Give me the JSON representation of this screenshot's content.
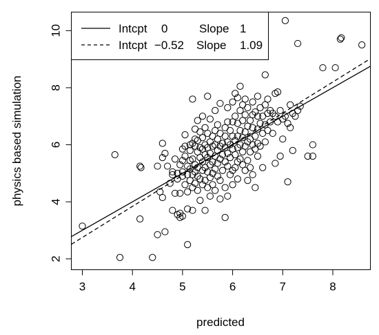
{
  "chart_data": {
    "type": "scatter",
    "title": "",
    "xlabel": "predicted",
    "ylabel": "physics based simulation",
    "xlim": [
      2.78,
      8.75
    ],
    "ylim": [
      1.62,
      10.65
    ],
    "xticks": [
      3,
      4,
      5,
      6,
      7,
      8
    ],
    "yticks": [
      2,
      4,
      6,
      8,
      10
    ],
    "grid": false,
    "legend": {
      "position": "top-left",
      "entries": [
        {
          "style": "solid",
          "intcpt_label": "Intcpt",
          "intcpt": "0",
          "slope_label": "Slope",
          "slope": "1"
        },
        {
          "style": "dashed",
          "intcpt_label": "Intcpt",
          "intcpt": "−0.52",
          "slope_label": "Slope",
          "slope": "1.09"
        }
      ]
    },
    "lines": [
      {
        "style": "solid",
        "intercept": 0,
        "slope": 1
      },
      {
        "style": "dashed",
        "intercept": -0.52,
        "slope": 1.09
      }
    ],
    "points": [
      [
        3.0,
        3.15
      ],
      [
        3.65,
        5.65
      ],
      [
        3.75,
        2.05
      ],
      [
        4.15,
        5.25
      ],
      [
        4.17,
        5.2
      ],
      [
        4.15,
        3.4
      ],
      [
        4.4,
        2.05
      ],
      [
        4.5,
        5.25
      ],
      [
        4.5,
        2.85
      ],
      [
        4.55,
        4.35
      ],
      [
        4.6,
        4.15
      ],
      [
        4.6,
        6.05
      ],
      [
        4.6,
        5.55
      ],
      [
        4.65,
        5.7
      ],
      [
        4.65,
        2.95
      ],
      [
        4.7,
        5.25
      ],
      [
        4.75,
        4.65
      ],
      [
        4.8,
        5.05
      ],
      [
        4.8,
        4.95
      ],
      [
        4.8,
        3.7
      ],
      [
        4.85,
        5.5
      ],
      [
        4.85,
        4.3
      ],
      [
        4.9,
        5.0
      ],
      [
        4.9,
        4.8
      ],
      [
        4.9,
        3.55
      ],
      [
        4.95,
        5.3
      ],
      [
        4.95,
        4.3
      ],
      [
        4.95,
        3.6
      ],
      [
        4.95,
        3.45
      ],
      [
        5.0,
        5.85
      ],
      [
        5.0,
        5.45
      ],
      [
        5.0,
        5.05
      ],
      [
        5.0,
        4.9
      ],
      [
        5.0,
        3.5
      ],
      [
        5.05,
        6.35
      ],
      [
        5.05,
        5.95
      ],
      [
        5.05,
        5.6
      ],
      [
        5.05,
        4.6
      ],
      [
        5.1,
        5.25
      ],
      [
        5.1,
        4.95
      ],
      [
        5.1,
        4.35
      ],
      [
        5.1,
        3.75
      ],
      [
        5.1,
        2.5
      ],
      [
        5.15,
        6.0
      ],
      [
        5.15,
        5.8
      ],
      [
        5.15,
        5.45
      ],
      [
        5.15,
        5.15
      ],
      [
        5.15,
        4.75
      ],
      [
        5.2,
        7.6
      ],
      [
        5.2,
        6.05
      ],
      [
        5.2,
        5.5
      ],
      [
        5.2,
        4.95
      ],
      [
        5.2,
        4.5
      ],
      [
        5.2,
        3.7
      ],
      [
        5.25,
        6.55
      ],
      [
        5.25,
        6.2
      ],
      [
        5.25,
        5.95
      ],
      [
        5.25,
        5.3
      ],
      [
        5.25,
        5.05
      ],
      [
        5.25,
        4.65
      ],
      [
        5.3,
        6.85
      ],
      [
        5.3,
        6.15
      ],
      [
        5.3,
        5.75
      ],
      [
        5.3,
        5.2
      ],
      [
        5.3,
        4.9
      ],
      [
        5.3,
        4.4
      ],
      [
        5.35,
        6.45
      ],
      [
        5.35,
        5.9
      ],
      [
        5.35,
        5.55
      ],
      [
        5.35,
        4.8
      ],
      [
        5.35,
        4.05
      ],
      [
        5.4,
        7.0
      ],
      [
        5.4,
        6.25
      ],
      [
        5.4,
        5.85
      ],
      [
        5.4,
        5.4
      ],
      [
        5.4,
        5.1
      ],
      [
        5.4,
        4.6
      ],
      [
        5.45,
        6.6
      ],
      [
        5.45,
        6.0
      ],
      [
        5.45,
        5.65
      ],
      [
        5.45,
        5.2
      ],
      [
        5.45,
        4.75
      ],
      [
        5.45,
        3.7
      ],
      [
        5.5,
        7.7
      ],
      [
        5.5,
        6.4
      ],
      [
        5.5,
        5.9
      ],
      [
        5.5,
        5.55
      ],
      [
        5.5,
        5.05
      ],
      [
        5.5,
        4.5
      ],
      [
        5.55,
        6.9
      ],
      [
        5.55,
        6.1
      ],
      [
        5.55,
        5.7
      ],
      [
        5.55,
        5.3
      ],
      [
        5.55,
        4.85
      ],
      [
        5.55,
        4.2
      ],
      [
        5.6,
        6.3
      ],
      [
        5.6,
        5.95
      ],
      [
        5.6,
        5.4
      ],
      [
        5.6,
        5.0
      ],
      [
        5.6,
        4.6
      ],
      [
        5.65,
        7.2
      ],
      [
        5.65,
        6.5
      ],
      [
        5.65,
        6.0
      ],
      [
        5.65,
        5.6
      ],
      [
        5.65,
        5.15
      ],
      [
        5.65,
        4.4
      ],
      [
        5.7,
        6.7
      ],
      [
        5.7,
        6.2
      ],
      [
        5.7,
        5.8
      ],
      [
        5.7,
        5.35
      ],
      [
        5.7,
        4.9
      ],
      [
        5.75,
        7.45
      ],
      [
        5.75,
        6.4
      ],
      [
        5.75,
        5.95
      ],
      [
        5.75,
        5.5
      ],
      [
        5.75,
        4.75
      ],
      [
        5.75,
        4.1
      ],
      [
        5.8,
        6.05
      ],
      [
        5.8,
        5.65
      ],
      [
        5.8,
        5.1
      ],
      [
        5.85,
        6.6
      ],
      [
        5.85,
        6.3
      ],
      [
        5.85,
        5.9
      ],
      [
        5.85,
        5.4
      ],
      [
        5.85,
        4.5
      ],
      [
        5.85,
        3.45
      ],
      [
        5.9,
        7.3
      ],
      [
        5.9,
        6.8
      ],
      [
        5.9,
        6.1
      ],
      [
        5.9,
        5.7
      ],
      [
        5.9,
        5.25
      ],
      [
        5.9,
        4.2
      ],
      [
        5.95,
        6.5
      ],
      [
        5.95,
        6.0
      ],
      [
        5.95,
        5.55
      ],
      [
        5.95,
        4.95
      ],
      [
        6.0,
        7.5
      ],
      [
        6.0,
        6.8
      ],
      [
        6.0,
        6.3
      ],
      [
        6.0,
        5.85
      ],
      [
        6.0,
        5.1
      ],
      [
        6.0,
        4.6
      ],
      [
        6.05,
        7.8
      ],
      [
        6.05,
        7.0
      ],
      [
        6.05,
        6.15
      ],
      [
        6.05,
        5.65
      ],
      [
        6.05,
        5.2
      ],
      [
        6.1,
        7.65
      ],
      [
        6.1,
        6.75
      ],
      [
        6.1,
        6.3
      ],
      [
        6.1,
        5.9
      ],
      [
        6.1,
        5.4
      ],
      [
        6.1,
        4.8
      ],
      [
        6.15,
        8.05
      ],
      [
        6.15,
        7.2
      ],
      [
        6.15,
        6.5
      ],
      [
        6.15,
        6.0
      ],
      [
        6.15,
        5.5
      ],
      [
        6.2,
        7.4
      ],
      [
        6.2,
        6.85
      ],
      [
        6.2,
        6.25
      ],
      [
        6.2,
        5.75
      ],
      [
        6.2,
        5.3
      ],
      [
        6.25,
        7.6
      ],
      [
        6.25,
        7.05
      ],
      [
        6.25,
        6.45
      ],
      [
        6.25,
        5.95
      ],
      [
        6.25,
        5.1
      ],
      [
        6.3,
        7.3
      ],
      [
        6.3,
        6.65
      ],
      [
        6.3,
        6.1
      ],
      [
        6.3,
        5.45
      ],
      [
        6.3,
        4.75
      ],
      [
        6.35,
        6.85
      ],
      [
        6.35,
        6.2
      ],
      [
        6.35,
        5.75
      ],
      [
        6.35,
        5.2
      ],
      [
        6.4,
        7.5
      ],
      [
        6.4,
        7.05
      ],
      [
        6.4,
        6.6
      ],
      [
        6.4,
        6.0
      ],
      [
        6.4,
        4.95
      ],
      [
        6.45,
        7.15
      ],
      [
        6.45,
        6.3
      ],
      [
        6.45,
        5.85
      ],
      [
        6.45,
        4.5
      ],
      [
        6.5,
        7.7
      ],
      [
        6.5,
        7.0
      ],
      [
        6.5,
        6.55
      ],
      [
        6.5,
        6.05
      ],
      [
        6.5,
        5.6
      ],
      [
        6.55,
        7.3
      ],
      [
        6.55,
        6.75
      ],
      [
        6.55,
        5.95
      ],
      [
        6.6,
        7.0
      ],
      [
        6.6,
        6.4
      ],
      [
        6.6,
        5.2
      ],
      [
        6.65,
        8.45
      ],
      [
        6.65,
        7.4
      ],
      [
        6.65,
        6.7
      ],
      [
        6.65,
        6.1
      ],
      [
        6.7,
        7.6
      ],
      [
        6.7,
        7.1
      ],
      [
        6.7,
        6.5
      ],
      [
        6.75,
        7.2
      ],
      [
        6.75,
        6.8
      ],
      [
        6.8,
        7.1
      ],
      [
        6.8,
        6.4
      ],
      [
        6.85,
        7.8
      ],
      [
        6.85,
        7.0
      ],
      [
        6.85,
        5.35
      ],
      [
        6.9,
        7.85
      ],
      [
        6.9,
        6.8
      ],
      [
        6.95,
        7.2
      ],
      [
        6.95,
        5.6
      ],
      [
        7.0,
        6.9
      ],
      [
        7.0,
        6.2
      ],
      [
        7.05,
        10.35
      ],
      [
        7.05,
        7.0
      ],
      [
        7.1,
        6.75
      ],
      [
        7.1,
        4.7
      ],
      [
        7.15,
        7.4
      ],
      [
        7.15,
        6.6
      ],
      [
        7.2,
        7.1
      ],
      [
        7.2,
        5.8
      ],
      [
        7.25,
        7.0
      ],
      [
        7.3,
        9.55
      ],
      [
        7.3,
        7.2
      ],
      [
        7.35,
        7.35
      ],
      [
        7.5,
        5.6
      ],
      [
        7.6,
        6.0
      ],
      [
        7.6,
        5.6
      ],
      [
        7.8,
        8.7
      ],
      [
        8.05,
        8.7
      ],
      [
        8.15,
        9.7
      ],
      [
        8.17,
        9.75
      ],
      [
        8.58,
        9.5
      ]
    ]
  }
}
